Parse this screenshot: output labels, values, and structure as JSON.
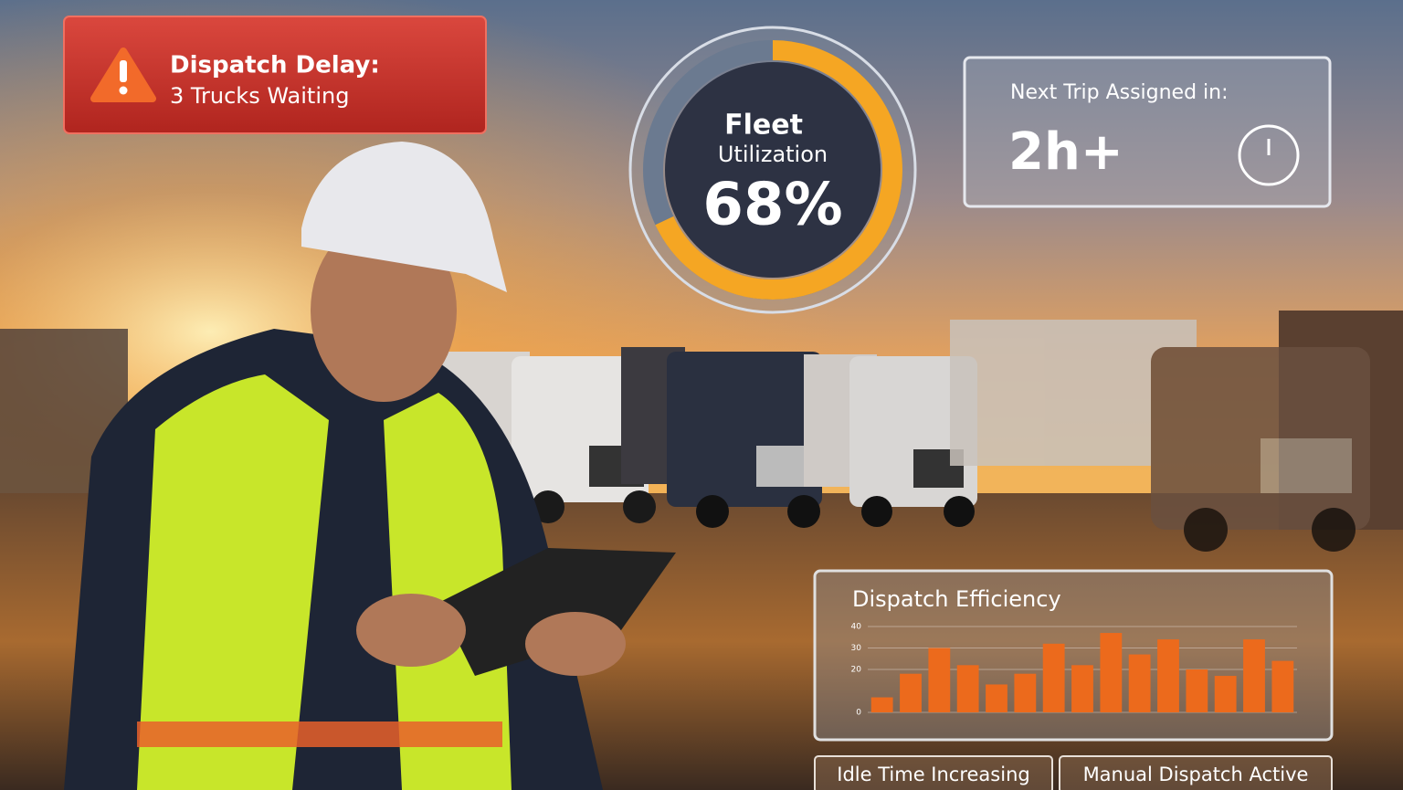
{
  "alert": {
    "title": "Dispatch Delay:",
    "subtitle": "3 Trucks Waiting"
  },
  "gauge": {
    "title": "Fleet",
    "subtitle": "Utilization",
    "value": 68,
    "value_label": "68%"
  },
  "next_trip": {
    "label": "Next Trip Assigned in:",
    "value": "2h+"
  },
  "chart_data": {
    "type": "bar",
    "title": "Dispatch Efficiency",
    "values": [
      7,
      18,
      30,
      22,
      13,
      18,
      32,
      22,
      37,
      27,
      34,
      20,
      17,
      34,
      24
    ],
    "color": "#ec6a1c",
    "ylim": [
      0,
      40
    ],
    "yticks": [
      0,
      20,
      30,
      40
    ],
    "grid": true
  },
  "status": [
    "Idle Time Increasing",
    "Manual Dispatch Active"
  ]
}
